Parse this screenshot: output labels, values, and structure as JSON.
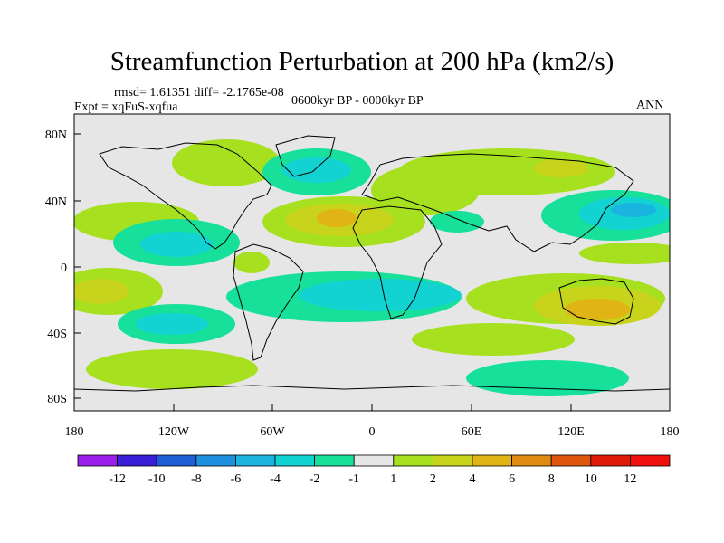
{
  "title": "Streamfunction Perturbation at 200 hPa (km2/s)",
  "stats": "rmsd= 1.61351 diff= -2.1765e-08",
  "experiment": "Expt = xqFuS-xqfua",
  "period": "0600kyr BP - 0000kyr BP",
  "season": "ANN",
  "lat_ticks": [
    "80N",
    "40N",
    "0",
    "40S",
    "80S"
  ],
  "lon_ticks": [
    "180",
    "120W",
    "60W",
    "0",
    "60E",
    "120E",
    "180"
  ],
  "colorbar": {
    "labels": [
      "-12",
      "-10",
      "-8",
      "-6",
      "-4",
      "-2",
      "-1",
      "1",
      "2",
      "4",
      "6",
      "8",
      "10",
      "12"
    ],
    "colors": [
      "#9b1fe8",
      "#3a1fd6",
      "#1f5fd6",
      "#1f8fe0",
      "#19b4e0",
      "#13d2d2",
      "#16e09a",
      "#e6e6e6",
      "#a6e01f",
      "#c8d41c",
      "#e0b414",
      "#e08a10",
      "#e0560c",
      "#e01a08",
      "#f01010"
    ]
  },
  "field_colors": {
    "neutral": "#e6e6e6",
    "pos1": "#a6e01f",
    "pos2": "#c8d41c",
    "pos3": "#e0b414",
    "neg1": "#16e09a",
    "neg2": "#13d2d2",
    "neg3": "#19b4e0"
  }
}
